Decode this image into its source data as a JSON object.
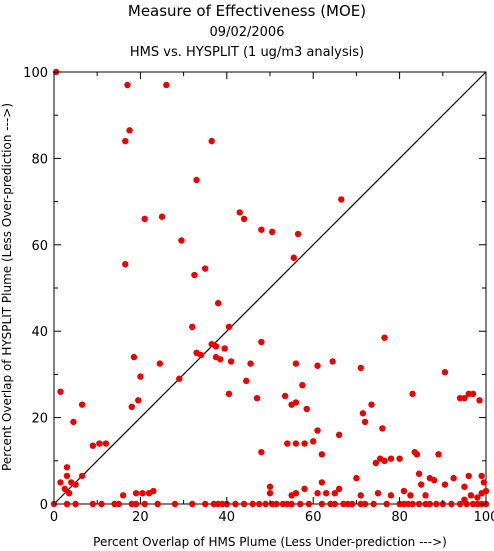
{
  "chart_data": {
    "type": "scatter",
    "title": "Measure of Effectiveness (MOE)",
    "subtitle": "09/02/2006",
    "subtitle2": "HMS vs. HYSPLIT  (1 ug/m3 analysis)",
    "xlabel": "Percent Overlap of HMS Plume (Less Under-prediction --->)",
    "ylabel": "Percent Overlap of HYSPLIT Plume (Less Over-prediction --->)",
    "xlim": [
      0,
      100
    ],
    "ylim": [
      0,
      100
    ],
    "xticks": [
      0,
      20,
      40,
      60,
      80,
      100
    ],
    "yticks": [
      0,
      20,
      40,
      60,
      80,
      100
    ],
    "reference_line": {
      "from": [
        0,
        0
      ],
      "to": [
        100,
        100
      ]
    },
    "marker_color": "#ee0000",
    "points": [
      [
        0.5,
        100
      ],
      [
        17,
        97
      ],
      [
        26,
        97
      ],
      [
        17.5,
        86.5
      ],
      [
        16.5,
        84
      ],
      [
        36.5,
        84
      ],
      [
        33,
        75
      ],
      [
        21,
        66
      ],
      [
        25,
        66.5
      ],
      [
        43,
        67.5
      ],
      [
        44,
        66
      ],
      [
        66.5,
        70.5
      ],
      [
        29.5,
        61
      ],
      [
        48,
        63.5
      ],
      [
        50.5,
        63
      ],
      [
        55.5,
        57
      ],
      [
        56.5,
        62.5
      ],
      [
        16.5,
        55.5
      ],
      [
        35,
        54.5
      ],
      [
        32.5,
        53
      ],
      [
        38,
        46.5
      ],
      [
        32,
        41
      ],
      [
        40.5,
        41
      ],
      [
        36.5,
        37
      ],
      [
        37.5,
        36.5
      ],
      [
        39.5,
        36
      ],
      [
        48,
        37.5
      ],
      [
        33,
        35
      ],
      [
        34,
        34.5
      ],
      [
        37.5,
        34
      ],
      [
        38.5,
        33.5
      ],
      [
        41,
        33
      ],
      [
        45.5,
        32.5
      ],
      [
        24.5,
        32.5
      ],
      [
        18.5,
        34
      ],
      [
        76.5,
        38.5
      ],
      [
        56,
        32.5
      ],
      [
        61,
        32
      ],
      [
        64.5,
        33
      ],
      [
        71,
        31.5
      ],
      [
        90.5,
        30.5
      ],
      [
        20,
        29.5
      ],
      [
        29,
        29
      ],
      [
        44.5,
        28.5
      ],
      [
        57.5,
        27.5
      ],
      [
        1.5,
        26
      ],
      [
        18,
        22.5
      ],
      [
        19.5,
        24
      ],
      [
        40.5,
        25.5
      ],
      [
        47,
        24.5
      ],
      [
        53.5,
        25
      ],
      [
        55,
        23
      ],
      [
        56,
        23.5
      ],
      [
        58.5,
        22
      ],
      [
        83,
        25.5
      ],
      [
        94,
        24.5
      ],
      [
        95,
        24.5
      ],
      [
        97,
        25.5
      ],
      [
        96,
        25.5
      ],
      [
        98.5,
        24
      ],
      [
        6.5,
        23
      ],
      [
        4.5,
        19
      ],
      [
        73.5,
        23
      ],
      [
        71.5,
        21
      ],
      [
        72,
        19
      ],
      [
        76,
        17.5
      ],
      [
        9,
        13.5
      ],
      [
        10.5,
        14
      ],
      [
        12,
        14
      ],
      [
        61,
        17
      ],
      [
        66,
        16
      ],
      [
        54,
        14
      ],
      [
        60,
        14.5
      ],
      [
        56,
        14
      ],
      [
        58,
        14
      ],
      [
        48,
        12
      ],
      [
        62,
        11.5
      ],
      [
        3,
        8.5
      ],
      [
        3,
        6.5
      ],
      [
        1.5,
        5
      ],
      [
        4,
        5
      ],
      [
        5,
        4.5
      ],
      [
        6.5,
        6.5
      ],
      [
        2.5,
        3.5
      ],
      [
        3.5,
        2.5
      ],
      [
        16,
        2
      ],
      [
        19,
        2.5
      ],
      [
        20.5,
        2.5
      ],
      [
        22,
        2.5
      ],
      [
        23,
        3
      ],
      [
        50,
        2.5
      ],
      [
        50,
        4
      ],
      [
        55,
        2
      ],
      [
        56,
        2.5
      ],
      [
        58,
        3.5
      ],
      [
        61,
        2.5
      ],
      [
        62,
        5
      ],
      [
        63,
        2.5
      ],
      [
        65,
        2.5
      ],
      [
        66,
        3.5
      ],
      [
        70,
        6
      ],
      [
        71,
        2
      ],
      [
        74.5,
        9.5
      ],
      [
        75.5,
        10.5
      ],
      [
        76.5,
        10
      ],
      [
        78,
        10.5
      ],
      [
        80,
        10.5
      ],
      [
        83.5,
        12
      ],
      [
        84,
        11.5
      ],
      [
        84.5,
        7
      ],
      [
        87,
        6
      ],
      [
        88,
        5.5
      ],
      [
        89,
        11.5
      ],
      [
        86,
        2
      ],
      [
        90.5,
        4.5
      ],
      [
        92.5,
        6
      ],
      [
        95,
        4
      ],
      [
        96,
        6.5
      ],
      [
        99,
        6.5
      ],
      [
        99.5,
        5
      ],
      [
        100,
        3
      ],
      [
        99,
        2.5
      ],
      [
        98,
        1.5
      ],
      [
        85,
        4.5
      ],
      [
        95,
        1
      ],
      [
        96.5,
        2
      ],
      [
        82.5,
        2
      ],
      [
        81,
        3
      ],
      [
        78,
        2
      ],
      [
        75,
        2.5
      ],
      [
        0,
        0
      ],
      [
        3,
        0
      ],
      [
        5,
        0
      ],
      [
        9,
        0
      ],
      [
        11,
        0
      ],
      [
        14,
        0
      ],
      [
        15,
        0
      ],
      [
        18,
        0
      ],
      [
        19,
        0
      ],
      [
        21,
        0
      ],
      [
        24,
        0
      ],
      [
        28,
        0
      ],
      [
        32,
        0
      ],
      [
        35,
        0
      ],
      [
        37,
        0
      ],
      [
        38,
        0
      ],
      [
        39,
        0
      ],
      [
        40,
        0
      ],
      [
        42,
        0
      ],
      [
        44,
        0
      ],
      [
        46,
        0
      ],
      [
        47.5,
        0
      ],
      [
        49,
        0
      ],
      [
        50.5,
        0
      ],
      [
        51.5,
        0
      ],
      [
        53,
        0
      ],
      [
        54,
        0
      ],
      [
        55,
        0
      ],
      [
        57,
        0
      ],
      [
        59,
        0
      ],
      [
        62,
        0
      ],
      [
        64,
        0
      ],
      [
        65,
        0
      ],
      [
        67,
        0
      ],
      [
        68,
        0
      ],
      [
        69,
        0
      ],
      [
        71,
        0
      ],
      [
        72,
        0
      ],
      [
        74,
        0
      ],
      [
        77,
        0
      ],
      [
        80,
        0
      ],
      [
        81,
        0
      ],
      [
        82,
        0
      ],
      [
        83,
        0
      ],
      [
        84.5,
        0
      ],
      [
        86,
        0
      ],
      [
        87,
        0
      ],
      [
        88.5,
        0
      ],
      [
        90,
        0
      ],
      [
        92,
        0
      ],
      [
        94,
        0
      ],
      [
        95.5,
        0
      ],
      [
        97,
        0
      ],
      [
        98,
        0
      ],
      [
        99,
        0
      ],
      [
        100,
        0
      ]
    ]
  }
}
